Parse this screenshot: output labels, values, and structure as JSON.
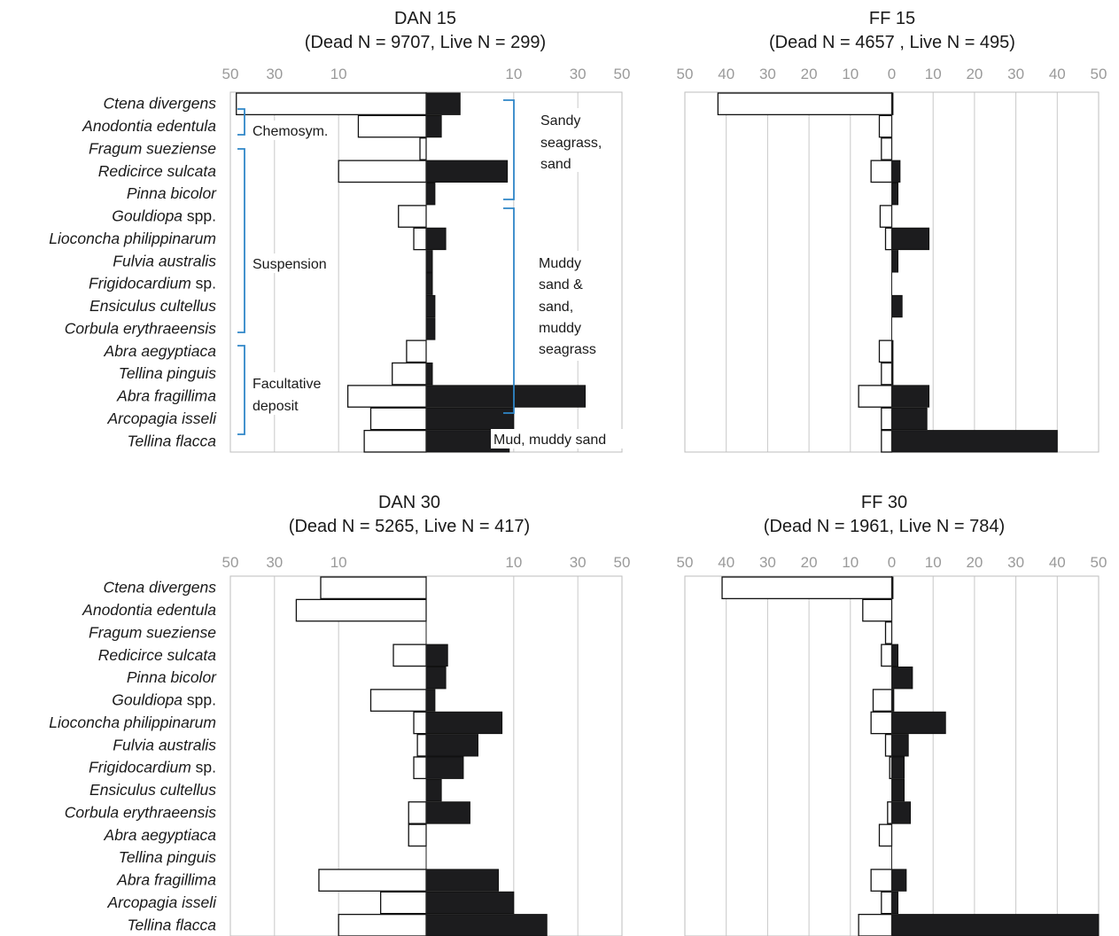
{
  "colors": {
    "dead": "#ffffff",
    "live": "#1c1c1e",
    "bracket": "#2f86c8",
    "grid": "#c8c8c8",
    "tick": "#9a9a9a"
  },
  "species": [
    {
      "name": "Ctena divergens",
      "suffix": ""
    },
    {
      "name": "Anodontia edentula",
      "suffix": ""
    },
    {
      "name": "Fragum sueziense",
      "suffix": ""
    },
    {
      "name": "Redicirce sulcata",
      "suffix": ""
    },
    {
      "name": "Pinna bicolor",
      "suffix": ""
    },
    {
      "name": "Gouldiopa",
      "suffix": " spp."
    },
    {
      "name": "Lioconcha philippinarum",
      "suffix": ""
    },
    {
      "name": "Fulvia australis",
      "suffix": ""
    },
    {
      "name": "Frigidocardium",
      "suffix": " sp."
    },
    {
      "name": "Ensiculus cultellus",
      "suffix": ""
    },
    {
      "name": "Corbula erythraeensis",
      "suffix": ""
    },
    {
      "name": "Abra aegyptiaca",
      "suffix": ""
    },
    {
      "name": "Tellina pinguis",
      "suffix": ""
    },
    {
      "name": "Abra fragillima",
      "suffix": ""
    },
    {
      "name": "Arcopagia isseli",
      "suffix": ""
    },
    {
      "name": "Tellina flacca",
      "suffix": ""
    }
  ],
  "chart_data": [
    {
      "type": "bar",
      "title": "DAN 15",
      "subtitle": "(Dead N = 9707, Live N = 299)",
      "tick_labels_left": [
        "50",
        "30",
        "10"
      ],
      "tick_labels_right": [
        "10",
        "30",
        "50"
      ],
      "scale": "sqrt",
      "dead_values": [
        47,
        6,
        0.05,
        10,
        0,
        1,
        0.2,
        0,
        0,
        0,
        0,
        0.5,
        1.5,
        8,
        4,
        5
      ],
      "live_values": [
        1.5,
        0.3,
        0,
        8.6,
        0.1,
        0,
        0.5,
        0.05,
        0.05,
        0.1,
        0.1,
        0,
        0.05,
        33,
        10,
        9
      ],
      "annotations": {
        "guilds": [
          "Chemosym.",
          "Suspension",
          "Facultative",
          "deposit"
        ],
        "habitats": [
          "Sandy",
          "seagrass,",
          "sand",
          "Muddy",
          "sand &",
          "sand,",
          "muddy",
          "seagrass",
          "Mud, muddy sand"
        ]
      }
    },
    {
      "type": "bar",
      "title": "FF 15",
      "subtitle": "(Dead N = 4657 , Live N = 495)",
      "tick_labels": [
        "50",
        "40",
        "30",
        "20",
        "10",
        "0",
        "10",
        "20",
        "30",
        "40",
        "50"
      ],
      "scale": "linear",
      "dead_values": [
        42,
        3,
        2.5,
        5,
        0,
        2.8,
        1.5,
        0,
        0,
        0,
        0,
        3,
        2.5,
        8,
        2.5,
        2.5
      ],
      "live_values": [
        0.3,
        0,
        0,
        2,
        1.5,
        0,
        9,
        1.5,
        0,
        2.5,
        0,
        0.3,
        0.3,
        9,
        8.5,
        40
      ]
    },
    {
      "type": "bar",
      "title": "DAN 30",
      "subtitle": "(Dead N = 5265, Live N = 417)",
      "tick_labels_left": [
        "50",
        "30",
        "10"
      ],
      "tick_labels_right": [
        "10",
        "30",
        "50"
      ],
      "scale": "sqrt",
      "dead_values": [
        14.5,
        22,
        0,
        1.4,
        0,
        4,
        0.2,
        0.1,
        0.2,
        0,
        0.4,
        0.4,
        0,
        15,
        2.7,
        10
      ],
      "live_values": [
        0,
        0,
        0,
        0.6,
        0.5,
        0.1,
        7.5,
        3.5,
        1.8,
        0.3,
        2.5,
        0,
        0,
        6.8,
        10,
        19
      ]
    },
    {
      "type": "bar",
      "title": "FF 30",
      "subtitle": "(Dead N = 1961, Live N = 784)",
      "tick_labels": [
        "50",
        "40",
        "30",
        "20",
        "10",
        "0",
        "10",
        "20",
        "30",
        "40",
        "50"
      ],
      "scale": "linear",
      "dead_values": [
        41,
        7,
        1.5,
        2.5,
        0,
        4.5,
        5,
        1.5,
        0.5,
        0,
        1,
        3,
        0,
        5,
        2.5,
        8
      ],
      "live_values": [
        0.3,
        0,
        0,
        1.5,
        5,
        0.5,
        13,
        4,
        3,
        3,
        4.5,
        0,
        0,
        3.5,
        1.5,
        50
      ]
    }
  ]
}
